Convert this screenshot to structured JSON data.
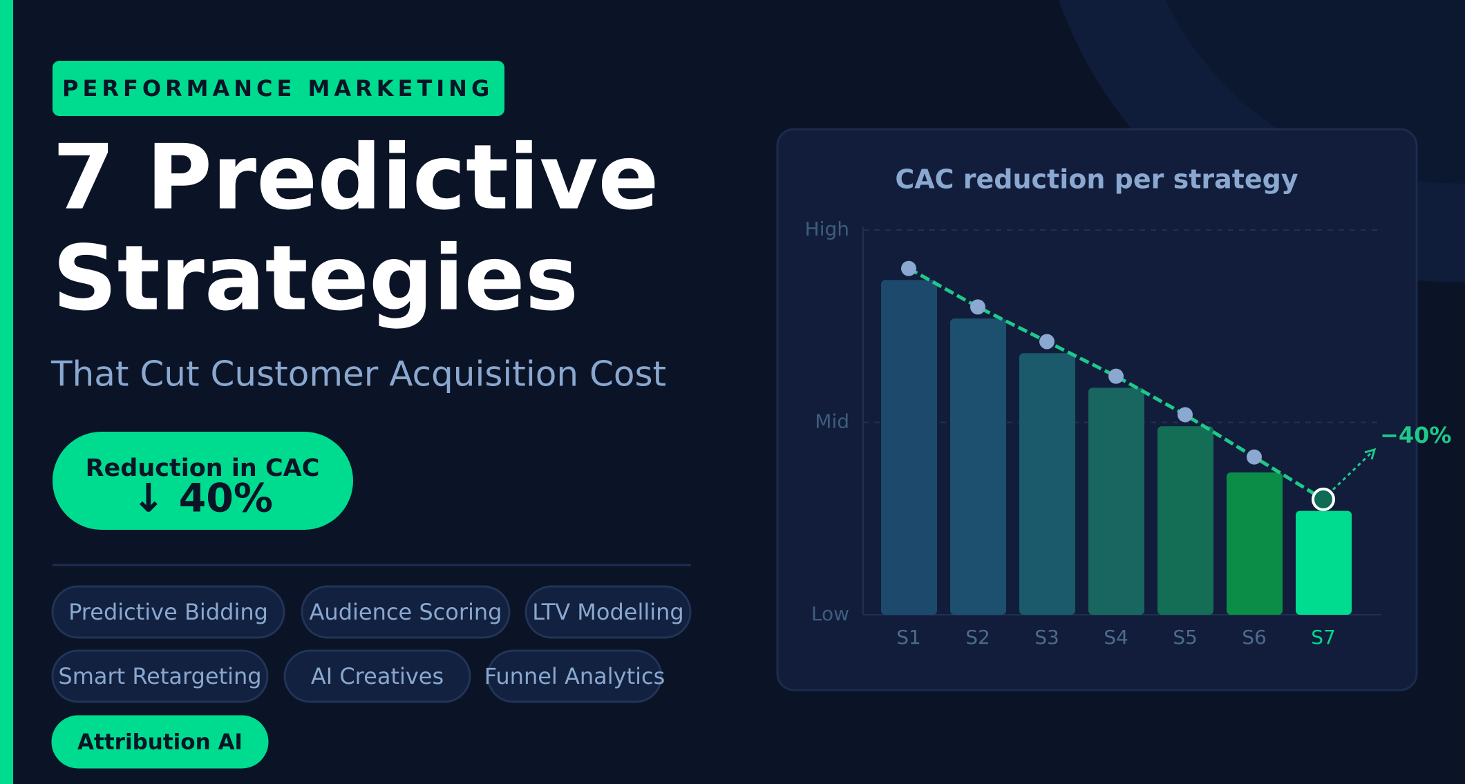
{
  "badge": "PERFORMANCE MARKETING",
  "title_lines": [
    "7 Predictive",
    "Strategies"
  ],
  "subtitle": "That Cut Customer Acquisition Cost",
  "stat": {
    "label": "Reduction in CAC",
    "value": "↓ 40%"
  },
  "tags": [
    "Predictive Bidding",
    "Audience Scoring",
    "LTV Modelling",
    "Smart Retargeting",
    "AI Creatives",
    "Funnel Analytics",
    "Attribution AI"
  ],
  "chart_data": {
    "type": "bar",
    "title": "CAC reduction per strategy",
    "categories": [
      "S1",
      "S2",
      "S3",
      "S4",
      "S5",
      "S6",
      "S7"
    ],
    "values": [
      87,
      77,
      68,
      59,
      49,
      37,
      27
    ],
    "colors": [
      "#1d4a6c",
      "#1d4f6e",
      "#1b5a6a",
      "#18665f",
      "#146d55",
      "#0b8c47",
      "#00dc8f"
    ],
    "line": {
      "values": [
        90,
        80,
        71,
        62,
        52,
        41,
        30
      ],
      "color": "#1ec98a"
    },
    "annotation": "−40%",
    "ylim": [
      0,
      100
    ],
    "yticks": [
      {
        "value": 0,
        "label": "Low"
      },
      {
        "value": 50,
        "label": "Mid"
      },
      {
        "value": 100,
        "label": "High"
      }
    ],
    "grid": true
  }
}
